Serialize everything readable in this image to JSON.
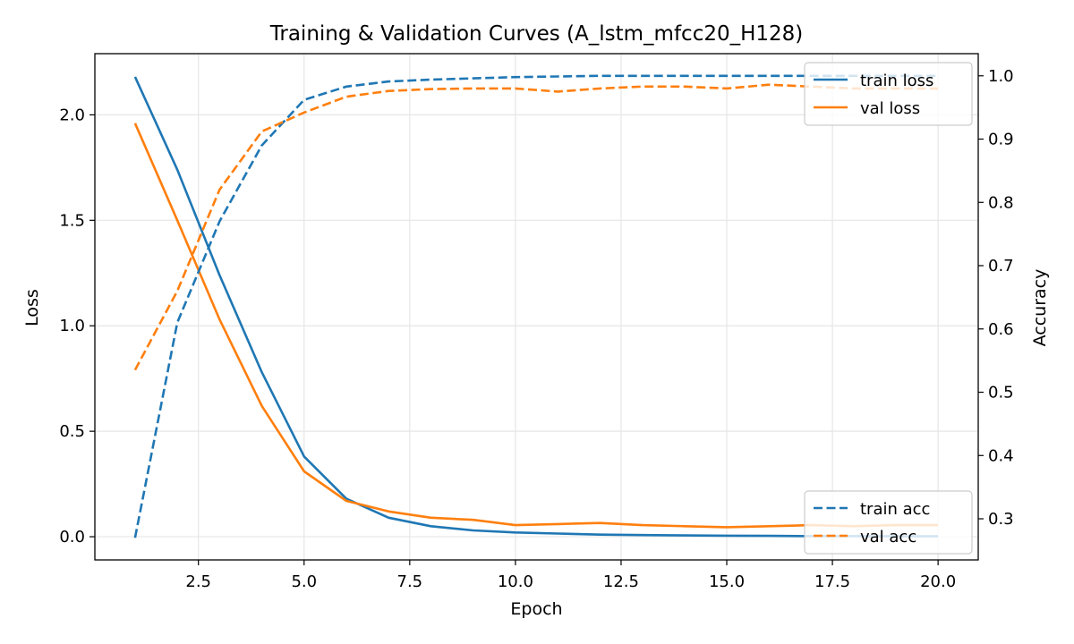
{
  "chart_data": {
    "type": "line",
    "title": "Training & Validation Curves (A_lstm_mfcc20_H128)",
    "xlabel": "Epoch",
    "ylabel": "Loss",
    "y2label": "Accuracy",
    "grid": true,
    "xlim": [
      0.05,
      20.95
    ],
    "ylim": [
      -0.11,
      2.29
    ],
    "y2lim": [
      0.235,
      1.035
    ],
    "xticks": [
      2.5,
      5.0,
      7.5,
      10.0,
      12.5,
      15.0,
      17.5,
      20.0
    ],
    "xtick_labels": [
      "2.5",
      "5.0",
      "7.5",
      "10.0",
      "12.5",
      "15.0",
      "17.5",
      "20.0"
    ],
    "yticks": [
      0.0,
      0.5,
      1.0,
      1.5,
      2.0
    ],
    "ytick_labels": [
      "0.0",
      "0.5",
      "1.0",
      "1.5",
      "2.0"
    ],
    "y2ticks": [
      0.3,
      0.4,
      0.5,
      0.6,
      0.7,
      0.8,
      0.9,
      1.0
    ],
    "y2tick_labels": [
      "0.3",
      "0.4",
      "0.5",
      "0.6",
      "0.7",
      "0.8",
      "0.9",
      "1.0"
    ],
    "x": [
      1,
      2,
      3,
      4,
      5,
      6,
      7,
      8,
      9,
      10,
      11,
      12,
      13,
      14,
      15,
      16,
      17,
      18,
      19,
      20
    ],
    "series": [
      {
        "name": "train loss",
        "axis": "left",
        "style": "solid",
        "color": "#1f77b4",
        "values": [
          2.18,
          1.74,
          1.24,
          0.78,
          0.38,
          0.18,
          0.09,
          0.05,
          0.03,
          0.02,
          0.015,
          0.01,
          0.008,
          0.006,
          0.005,
          0.004,
          0.003,
          0.003,
          0.002,
          0.002
        ]
      },
      {
        "name": "val loss",
        "axis": "left",
        "style": "solid",
        "color": "#ff7f0e",
        "values": [
          1.96,
          1.5,
          1.03,
          0.62,
          0.31,
          0.17,
          0.12,
          0.09,
          0.08,
          0.055,
          0.06,
          0.065,
          0.055,
          0.05,
          0.045,
          0.05,
          0.055,
          0.05,
          0.055,
          0.055
        ]
      },
      {
        "name": "train acc",
        "axis": "right",
        "style": "dashed",
        "color": "#1f77b4",
        "values": [
          0.27,
          0.61,
          0.77,
          0.89,
          0.962,
          0.983,
          0.991,
          0.994,
          0.996,
          0.998,
          0.999,
          1.0,
          1.0,
          1.0,
          1.0,
          1.0,
          1.0,
          1.0,
          1.0,
          1.0
        ]
      },
      {
        "name": "val acc",
        "axis": "right",
        "style": "dashed",
        "color": "#ff7f0e",
        "values": [
          0.535,
          0.66,
          0.82,
          0.912,
          0.942,
          0.967,
          0.976,
          0.979,
          0.98,
          0.98,
          0.975,
          0.98,
          0.983,
          0.983,
          0.98,
          0.986,
          0.983,
          0.98,
          0.98,
          0.98
        ]
      }
    ],
    "legends": [
      {
        "location": "top-right",
        "entries": [
          "train loss",
          "val loss"
        ]
      },
      {
        "location": "bottom-right",
        "entries": [
          "train acc",
          "val acc"
        ]
      }
    ]
  }
}
